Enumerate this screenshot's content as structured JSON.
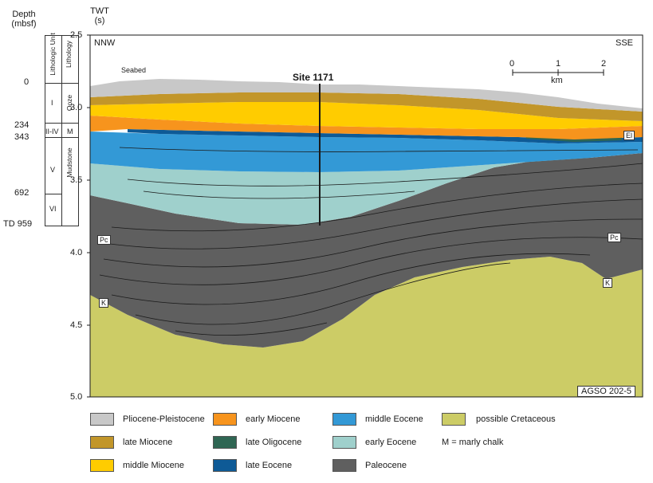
{
  "depth_header": {
    "line1": "Depth",
    "line2": "(mbsf)"
  },
  "twt_header": {
    "line1": "TWT",
    "line2": "(s)"
  },
  "depth_labels": [
    "0",
    "234",
    "343",
    "692",
    "TD 959"
  ],
  "strat_column": {
    "col1_header": "Lithologic Unit",
    "col2_header": "Lithology",
    "units": [
      "I",
      "II-IV",
      "V",
      "VI"
    ],
    "lithology": [
      "Ooze",
      "M",
      "Mudstone"
    ]
  },
  "twt_ticks": [
    "2.5",
    "3.0",
    "3.5",
    "4.0",
    "4.5",
    "5.0"
  ],
  "section": {
    "left_dir": "NNW",
    "right_dir": "SSE",
    "seabed": "Seabed",
    "site": "Site 1171",
    "scale_ticks": [
      "0",
      "1",
      "2"
    ],
    "scale_unit": "km",
    "marker_el": "El",
    "marker_pc": "Pc",
    "marker_k": "K",
    "source_tag": "AGSO 202-5"
  },
  "colors": {
    "pliocene": "#c8c8c8",
    "late_miocene": "#c2962a",
    "middle_miocene": "#ffcc00",
    "early_miocene": "#f7941d",
    "late_oligocene": "#2f6653",
    "late_eocene": "#0e5a96",
    "middle_eocene": "#3399d6",
    "early_eocene": "#9fd0cc",
    "paleocene": "#5f5f5f",
    "cretaceous": "#cccc66"
  },
  "legend": [
    {
      "label": "Pliocene-Pleistocene",
      "color": "#c8c8c8"
    },
    {
      "label": "early Miocene",
      "color": "#f7941d"
    },
    {
      "label": "middle Eocene",
      "color": "#3399d6"
    },
    {
      "label": "possible Cretaceous",
      "color": "#cccc66"
    },
    {
      "label": "late Miocene",
      "color": "#c2962a"
    },
    {
      "label": "late Oligocene",
      "color": "#2f6653"
    },
    {
      "label": "early Eocene",
      "color": "#9fd0cc"
    },
    {
      "label": "M = marly chalk",
      "color": ""
    },
    {
      "label": "middle Miocene",
      "color": "#ffcc00"
    },
    {
      "label": "late Eocene",
      "color": "#0e5a96"
    },
    {
      "label": "Paleocene",
      "color": "#5f5f5f"
    }
  ]
}
